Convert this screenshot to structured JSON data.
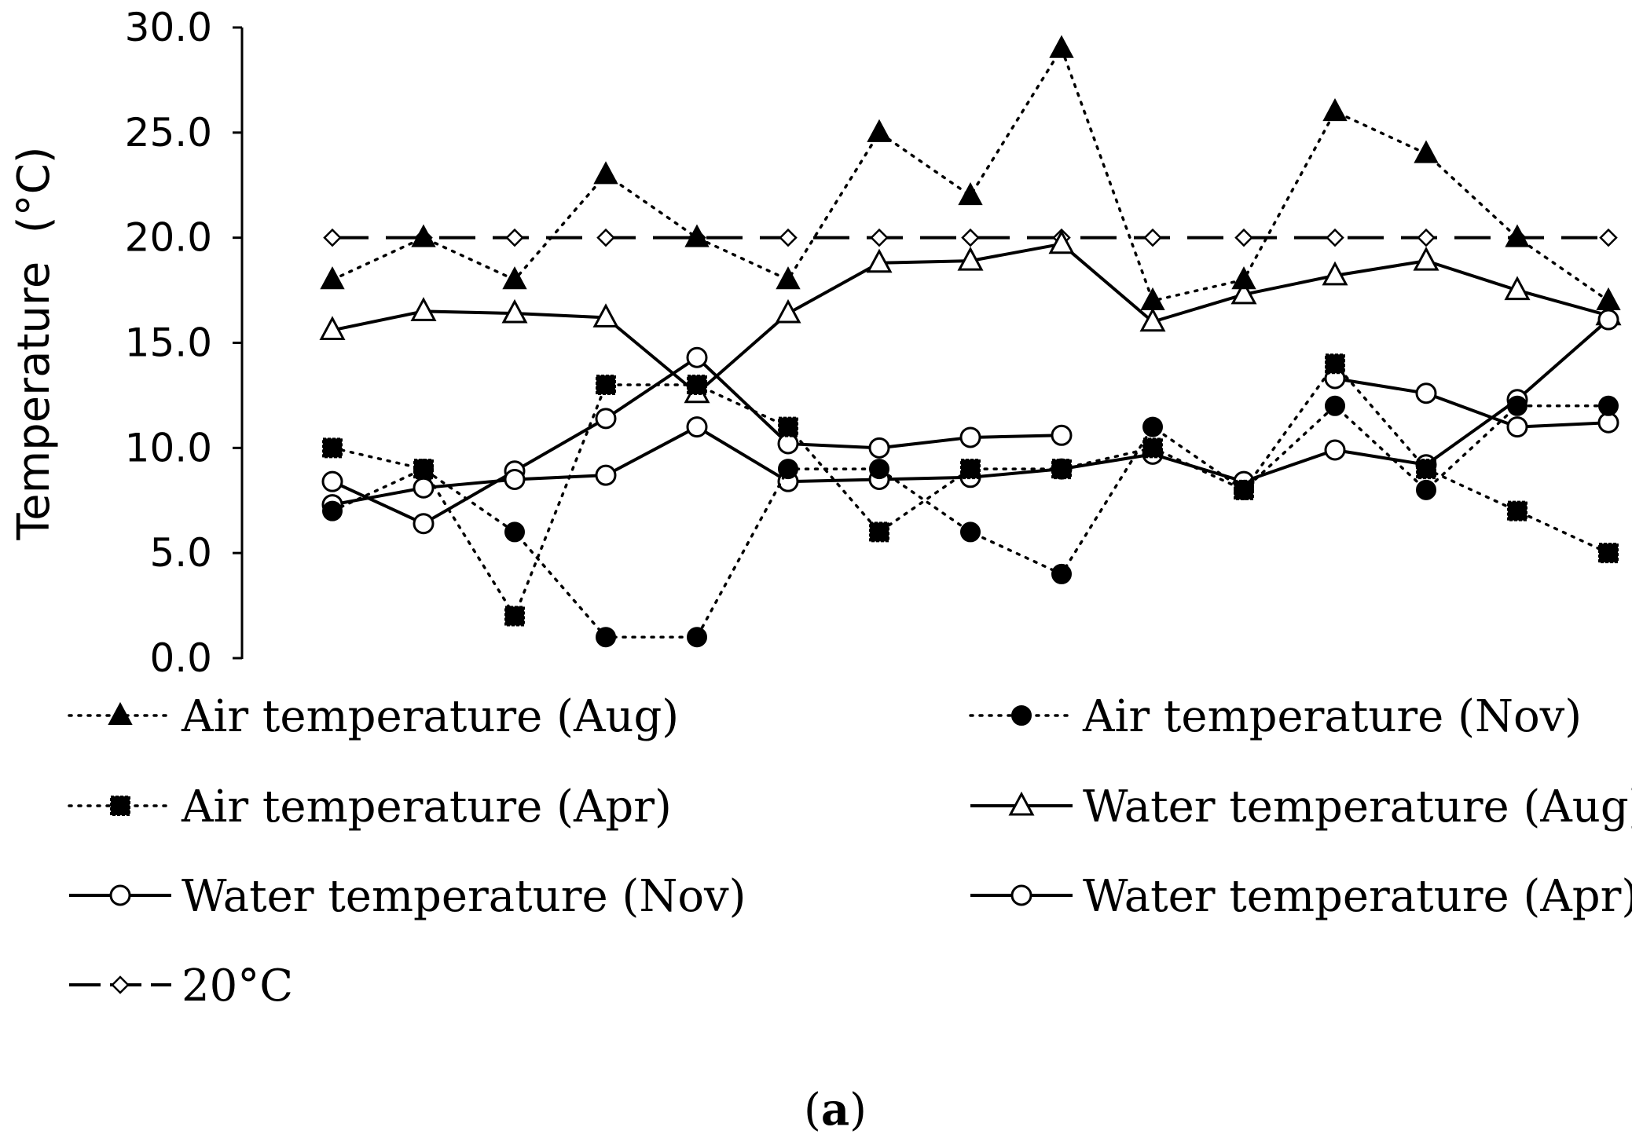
{
  "chart_data": {
    "type": "line",
    "title": "",
    "xlabel": "",
    "ylabel": "Temperature  (°C)",
    "ylim": [
      0,
      30
    ],
    "yticks": [
      "0.0",
      "5.0",
      "10.0",
      "15.0",
      "20.0",
      "25.0",
      "30.0"
    ],
    "x": [
      1,
      2,
      3,
      4,
      5,
      6,
      7,
      8,
      9,
      10,
      11,
      12,
      13,
      14,
      15
    ],
    "grid": false,
    "legend": "bottom",
    "series": [
      {
        "name": "Air temperature (Aug)",
        "line": "dotted",
        "marker": "triangle-filled",
        "values": [
          18,
          20,
          18,
          23,
          20,
          18,
          25,
          22,
          29,
          17,
          18,
          26,
          24,
          20,
          17
        ]
      },
      {
        "name": "Air temperature (Nov)",
        "line": "dotted",
        "marker": "circle-filled",
        "values": [
          7,
          9,
          6,
          1,
          1,
          9,
          9,
          6,
          4,
          11,
          8,
          12,
          8,
          12,
          12
        ]
      },
      {
        "name": "Air temperature (Apr)",
        "line": "dotted",
        "marker": "square-filled",
        "values": [
          10,
          9,
          2,
          13,
          13,
          11,
          6,
          9,
          9,
          10,
          8,
          14,
          9,
          7,
          5
        ]
      },
      {
        "name": "Water temperature (Aug)",
        "line": "solid",
        "marker": "triangle-open",
        "values": [
          15.6,
          16.5,
          16.4,
          16.2,
          12.6,
          16.4,
          18.8,
          18.9,
          19.7,
          16,
          17.3,
          18.2,
          18.9,
          17.5,
          16.3
        ]
      },
      {
        "name": "Water temperature (Nov)",
        "line": "solid",
        "marker": "circle-open",
        "values": [
          8.4,
          6.4,
          8.9,
          11.4,
          14.3,
          10.2,
          10,
          10.5,
          10.6,
          null,
          null,
          13.3,
          12.6,
          11,
          11.2
        ]
      },
      {
        "name": "Water temperature (Apr)",
        "line": "solid",
        "marker": "circle-open",
        "values": [
          7.3,
          8.1,
          8.5,
          8.7,
          11,
          8.4,
          8.5,
          8.6,
          9,
          9.7,
          8.4,
          9.9,
          9.2,
          12.3,
          16.1
        ]
      },
      {
        "name": "20°C",
        "line": "dashed",
        "marker": "diamond-open",
        "values": [
          20,
          20,
          20,
          20,
          20,
          20,
          20,
          20,
          20,
          20,
          20,
          20,
          20,
          20,
          20
        ]
      }
    ]
  },
  "panel": {
    "open": "(",
    "letter": "a",
    "close": ")"
  },
  "colors": {
    "ink": "#000000",
    "paper": "#ffffff"
  }
}
